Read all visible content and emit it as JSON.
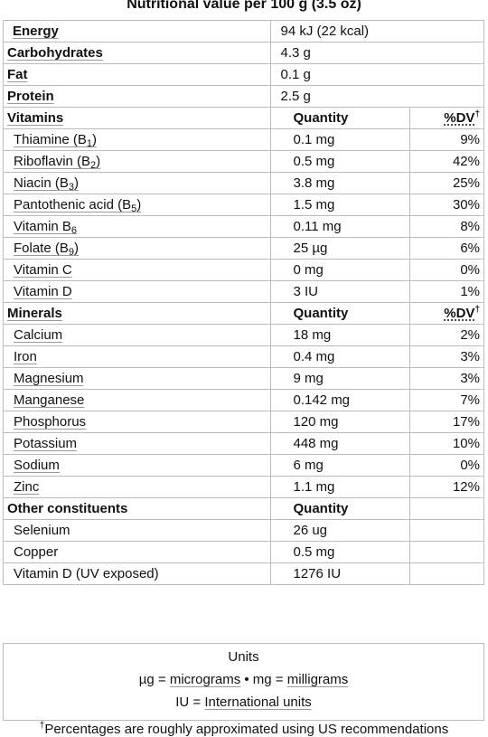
{
  "title": "Nutritional value per 100 g (3.5 oz)",
  "energy": {
    "label": "Energy",
    "value": "94 kJ (22 kcal)"
  },
  "macros": [
    {
      "label": "Carbohydrates",
      "value": "4.3 g"
    },
    {
      "label": "Fat",
      "value": "0.1 g"
    },
    {
      "label": "Protein",
      "value": "2.5 g"
    }
  ],
  "vitamins": {
    "header": "Vitamins",
    "quantity_header": "Quantity",
    "dv_header": "%DV",
    "dagger": "†",
    "rows": [
      {
        "name": "Thiamine (B",
        "sub": "1",
        "close": ")",
        "qty": "0.1 mg",
        "dv": "9%"
      },
      {
        "name": "Riboflavin (B",
        "sub": "2",
        "close": ")",
        "qty": "0.5 mg",
        "dv": "42%"
      },
      {
        "name": "Niacin (B",
        "sub": "3",
        "close": ")",
        "qty": "3.8 mg",
        "dv": "25%"
      },
      {
        "name": "Pantothenic acid (B",
        "sub": "5",
        "close": ")",
        "qty": "1.5 mg",
        "dv": "30%"
      },
      {
        "name": "Vitamin B",
        "sub": "6",
        "close": "",
        "qty": "0.11 mg",
        "dv": "8%"
      },
      {
        "name": "Folate (B",
        "sub": "9",
        "close": ")",
        "qty": "25 µg",
        "dv": "6%"
      },
      {
        "name": "Vitamin C",
        "sub": "",
        "close": "",
        "qty": "0 mg",
        "dv": "0%"
      },
      {
        "name": "Vitamin D",
        "sub": "",
        "close": "",
        "qty": "3 IU",
        "dv": "1%"
      }
    ]
  },
  "minerals": {
    "header": "Minerals",
    "quantity_header": "Quantity",
    "dv_header": "%DV",
    "dagger": "†",
    "rows": [
      {
        "name": "Calcium",
        "qty": "18 mg",
        "dv": "2%"
      },
      {
        "name": "Iron",
        "qty": "0.4 mg",
        "dv": "3%"
      },
      {
        "name": "Magnesium",
        "qty": "9 mg",
        "dv": "3%"
      },
      {
        "name": "Manganese",
        "qty": "0.142 mg",
        "dv": "7%"
      },
      {
        "name": "Phosphorus",
        "qty": "120 mg",
        "dv": "17%"
      },
      {
        "name": "Potassium",
        "qty": "448 mg",
        "dv": "10%"
      },
      {
        "name": "Sodium",
        "qty": "6 mg",
        "dv": "0%"
      },
      {
        "name": "Zinc",
        "qty": "1.1 mg",
        "dv": "12%"
      }
    ]
  },
  "other": {
    "header": "Other constituents",
    "quantity_header": "Quantity",
    "rows": [
      {
        "name": "Selenium",
        "qty": "26 ug"
      },
      {
        "name": "Copper",
        "qty": "0.5 mg"
      },
      {
        "name": "Vitamin D (UV exposed)",
        "qty": "1276 IU"
      }
    ]
  },
  "units": {
    "heading": "Units",
    "ug": "µg",
    "eq1": " = ",
    "micrograms": "micrograms",
    "bullet": " • ",
    "mg": "mg",
    "eq2": " = ",
    "milligrams": "milligrams",
    "iu": "IU",
    "eq3": " = ",
    "international_units": "International units"
  },
  "footnote": {
    "dagger": "†",
    "text": "Percentages are roughly approximated using US recommendations"
  }
}
